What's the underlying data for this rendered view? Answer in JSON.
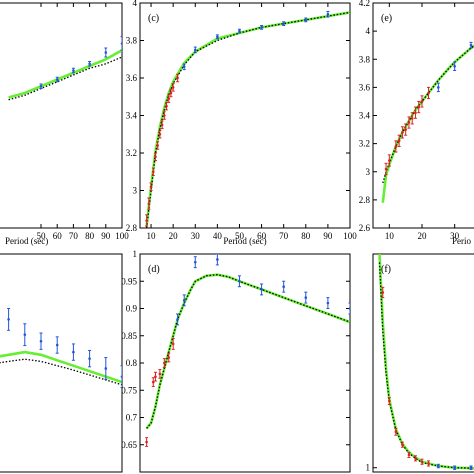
{
  "chart_data": [
    {
      "panel": "",
      "type": "line",
      "xlabel": "Period (sec)",
      "ylabel": "",
      "xlim": [
        0,
        100
      ],
      "ylim": [
        3.0,
        4.0
      ],
      "xticks": [
        0,
        10,
        20,
        30,
        40,
        50,
        60,
        70,
        80,
        90,
        100
      ],
      "xtick_labels": [
        "",
        "50",
        "60",
        "70",
        "80",
        "90",
        "100"
      ],
      "xtick_values_shown": [
        50,
        60,
        70,
        80,
        90,
        100
      ],
      "yticks": [],
      "ytick_labels": [],
      "series": [
        {
          "style": "solid",
          "color": "#66ee33",
          "x": [
            30,
            40,
            50,
            60,
            70,
            80,
            90,
            100
          ],
          "y": [
            3.58,
            3.6,
            3.63,
            3.66,
            3.69,
            3.72,
            3.75,
            3.79
          ]
        },
        {
          "style": "dotted",
          "color": "#000000",
          "x": [
            30,
            40,
            50,
            60,
            70,
            80,
            90,
            100
          ],
          "y": [
            3.57,
            3.59,
            3.62,
            3.65,
            3.68,
            3.71,
            3.73,
            3.76
          ]
        },
        {
          "style": "errorbar",
          "color": "#2255dd",
          "x": [
            50,
            60,
            70,
            80,
            90,
            100
          ],
          "y": [
            3.63,
            3.66,
            3.7,
            3.73,
            3.78,
            3.82
          ],
          "err": [
            0.01,
            0.01,
            0.01,
            0.01,
            0.02,
            0.03
          ]
        }
      ]
    },
    {
      "panel": "(c)",
      "type": "line",
      "xlabel": "Period (sec)",
      "ylabel": "",
      "xlim": [
        5,
        100
      ],
      "ylim": [
        2.8,
        4.0
      ],
      "xtick_labels": [
        "10",
        "20",
        "30",
        "40",
        "50",
        "60",
        "70",
        "80",
        "90",
        "100"
      ],
      "xtick_values": [
        10,
        20,
        30,
        40,
        50,
        60,
        70,
        80,
        90,
        100
      ],
      "ytick_labels": [
        "2.8",
        "3",
        "3.2",
        "3.4",
        "3.6",
        "3.8",
        "4"
      ],
      "ytick_values": [
        2.8,
        3.0,
        3.2,
        3.4,
        3.6,
        3.8,
        4.0
      ],
      "series": [
        {
          "style": "solid",
          "color": "#66ee33",
          "x": [
            8,
            10,
            12,
            14,
            16,
            18,
            20,
            25,
            30,
            40,
            50,
            60,
            70,
            80,
            90,
            100
          ],
          "y": [
            2.81,
            3.02,
            3.21,
            3.34,
            3.44,
            3.52,
            3.58,
            3.68,
            3.74,
            3.81,
            3.84,
            3.87,
            3.89,
            3.91,
            3.93,
            3.95
          ]
        },
        {
          "style": "dotted",
          "color": "#000000",
          "x": [
            8,
            10,
            12,
            14,
            16,
            18,
            20,
            25,
            30,
            40,
            50,
            60,
            70,
            80,
            90,
            100
          ],
          "y": [
            2.8,
            3.0,
            3.2,
            3.33,
            3.43,
            3.51,
            3.57,
            3.67,
            3.74,
            3.8,
            3.84,
            3.87,
            3.89,
            3.91,
            3.93,
            3.95
          ]
        },
        {
          "style": "errorbar",
          "color": "#dd2222",
          "x": [
            8,
            9,
            10,
            11,
            12,
            13,
            14,
            15,
            16,
            17,
            18,
            19,
            20,
            22
          ],
          "y": [
            2.84,
            2.93,
            3.02,
            3.1,
            3.18,
            3.24,
            3.3,
            3.35,
            3.4,
            3.45,
            3.49,
            3.52,
            3.55,
            3.6
          ],
          "err": [
            0.03,
            0.03,
            0.02,
            0.02,
            0.02,
            0.02,
            0.02,
            0.02,
            0.02,
            0.02,
            0.02,
            0.02,
            0.02,
            0.02
          ]
        },
        {
          "style": "errorbar",
          "color": "#2255dd",
          "x": [
            25,
            30,
            40,
            50,
            60,
            70,
            80,
            90
          ],
          "y": [
            3.66,
            3.75,
            3.82,
            3.85,
            3.87,
            3.89,
            3.91,
            3.94
          ],
          "err": [
            0.015,
            0.015,
            0.01,
            0.01,
            0.01,
            0.01,
            0.01,
            0.015
          ]
        }
      ]
    },
    {
      "panel": "(e)",
      "type": "line",
      "xlabel": "Perio",
      "ylabel": "",
      "xlim": [
        5,
        50
      ],
      "ylim": [
        2.6,
        4.2
      ],
      "xtick_labels": [
        "10",
        "20",
        "30",
        "40"
      ],
      "xtick_values": [
        10,
        20,
        30,
        40
      ],
      "ytick_labels": [
        "2.6",
        "2.8",
        "3",
        "3.2",
        "3.4",
        "3.6",
        "3.8",
        "4",
        "4.2"
      ],
      "ytick_values": [
        2.6,
        2.8,
        3.0,
        3.2,
        3.4,
        3.6,
        3.8,
        4.0,
        4.2
      ],
      "series": [
        {
          "style": "solid",
          "color": "#66ee33",
          "x": [
            8,
            9,
            10,
            12,
            14,
            16,
            18,
            20,
            22,
            25,
            28,
            30,
            35,
            40,
            45,
            50
          ],
          "y": [
            2.78,
            2.98,
            3.05,
            3.18,
            3.28,
            3.36,
            3.44,
            3.5,
            3.56,
            3.65,
            3.73,
            3.78,
            3.88,
            3.96,
            4.0,
            4.03
          ]
        },
        {
          "style": "dotted",
          "color": "#000000",
          "x": [
            8,
            9,
            10,
            12,
            14,
            16,
            18,
            20,
            22,
            25,
            28,
            30,
            35,
            40,
            45,
            50
          ],
          "y": [
            2.92,
            3.0,
            3.06,
            3.18,
            3.28,
            3.36,
            3.44,
            3.5,
            3.56,
            3.65,
            3.73,
            3.78,
            3.88,
            3.96,
            4.0,
            4.03
          ]
        },
        {
          "style": "errorbar",
          "color": "#dd2222",
          "x": [
            9,
            10,
            12,
            13,
            14,
            15,
            16,
            17,
            18,
            19,
            20,
            22
          ],
          "y": [
            3.02,
            3.08,
            3.18,
            3.22,
            3.28,
            3.3,
            3.35,
            3.38,
            3.42,
            3.46,
            3.5,
            3.56
          ],
          "err": [
            0.04,
            0.04,
            0.04,
            0.04,
            0.04,
            0.04,
            0.04,
            0.04,
            0.04,
            0.04,
            0.04,
            0.04
          ]
        },
        {
          "style": "errorbar",
          "color": "#2255dd",
          "x": [
            25,
            30,
            35,
            40,
            45,
            50
          ],
          "y": [
            3.6,
            3.75,
            3.9,
            3.96,
            4.0,
            4.03
          ],
          "err": [
            0.03,
            0.03,
            0.02,
            0.02,
            0.02,
            0.02
          ]
        }
      ]
    },
    {
      "panel": "",
      "type": "line",
      "xlabel": "",
      "ylabel": "",
      "xlim": [
        0,
        100
      ],
      "ylim": [
        0.5,
        0.9
      ],
      "xtick_labels": [],
      "ytick_labels": [],
      "series": [
        {
          "style": "solid",
          "color": "#66ee33",
          "x": [
            0,
            30,
            40,
            50,
            60,
            70,
            80,
            90,
            100
          ],
          "y": [
            0.7,
            0.715,
            0.72,
            0.715,
            0.705,
            0.695,
            0.685,
            0.675,
            0.665
          ]
        },
        {
          "style": "dotted",
          "color": "#000000",
          "x": [
            0,
            30,
            40,
            50,
            60,
            70,
            80,
            90,
            100
          ],
          "y": [
            0.69,
            0.703,
            0.707,
            0.703,
            0.695,
            0.687,
            0.678,
            0.669,
            0.66
          ]
        },
        {
          "style": "errorbar",
          "color": "#2255dd",
          "x": [
            30,
            40,
            50,
            60,
            70,
            80,
            90,
            100
          ],
          "y": [
            0.78,
            0.752,
            0.74,
            0.733,
            0.72,
            0.708,
            0.69,
            0.675
          ],
          "err": [
            0.02,
            0.02,
            0.015,
            0.015,
            0.015,
            0.015,
            0.02,
            0.02
          ]
        }
      ]
    },
    {
      "panel": "(d)",
      "type": "line",
      "xlabel": "",
      "ylabel": "",
      "xlim": [
        5,
        100
      ],
      "ylim": [
        0.6,
        1.0
      ],
      "xtick_labels": [],
      "ytick_labels": [
        "0.65",
        "0.7",
        "0.75",
        "0.8",
        "0.85",
        "0.9",
        "0.95",
        "1"
      ],
      "ytick_values": [
        0.65,
        0.7,
        0.75,
        0.8,
        0.85,
        0.9,
        0.95,
        1.0
      ],
      "series": [
        {
          "style": "solid",
          "color": "#66ee33",
          "x": [
            8,
            10,
            12,
            14,
            16,
            18,
            20,
            22,
            25,
            28,
            30,
            35,
            40,
            45,
            50,
            60,
            70,
            80,
            90,
            100
          ],
          "y": [
            0.68,
            0.69,
            0.72,
            0.76,
            0.79,
            0.82,
            0.85,
            0.88,
            0.91,
            0.935,
            0.95,
            0.96,
            0.962,
            0.958,
            0.95,
            0.935,
            0.92,
            0.905,
            0.89,
            0.875
          ]
        },
        {
          "style": "dotted",
          "color": "#000000",
          "x": [
            8,
            10,
            12,
            14,
            16,
            18,
            20,
            22,
            25,
            28,
            30,
            35,
            40,
            45,
            50,
            60,
            70,
            80,
            90,
            100
          ],
          "y": [
            0.68,
            0.69,
            0.72,
            0.76,
            0.79,
            0.82,
            0.85,
            0.88,
            0.91,
            0.935,
            0.95,
            0.96,
            0.962,
            0.958,
            0.95,
            0.935,
            0.92,
            0.905,
            0.89,
            0.875
          ]
        },
        {
          "style": "errorbar",
          "color": "#dd2222",
          "x": [
            8,
            11,
            12,
            14,
            16,
            18,
            20
          ],
          "y": [
            0.655,
            0.765,
            0.775,
            0.78,
            0.8,
            0.81,
            0.835
          ],
          "err": [
            0.008,
            0.008,
            0.008,
            0.008,
            0.008,
            0.008,
            0.01
          ]
        },
        {
          "style": "errorbar",
          "color": "#2255dd",
          "x": [
            22,
            25,
            30,
            40,
            50,
            60,
            70,
            80,
            90,
            100
          ],
          "y": [
            0.88,
            0.915,
            0.985,
            0.99,
            0.95,
            0.935,
            0.94,
            0.92,
            0.91,
            0.9
          ],
          "err": [
            0.01,
            0.01,
            0.01,
            0.01,
            0.01,
            0.01,
            0.01,
            0.01,
            0.01,
            0.01
          ]
        }
      ]
    },
    {
      "panel": "(f)",
      "type": "line",
      "xlabel": "",
      "ylabel": "",
      "xlim": [
        5,
        50
      ],
      "ylim": [
        0.95,
        3.5
      ],
      "xtick_labels": [],
      "ytick_labels": [
        "1"
      ],
      "ytick_values": [
        1.0
      ],
      "series": [
        {
          "style": "solid",
          "color": "#66ee33",
          "x": [
            7,
            8,
            9,
            10,
            12,
            14,
            16,
            18,
            20,
            25,
            30,
            40,
            50
          ],
          "y": [
            3.5,
            2.7,
            2.15,
            1.8,
            1.45,
            1.28,
            1.18,
            1.12,
            1.07,
            1.02,
            1.0,
            0.99,
            0.99
          ]
        },
        {
          "style": "dotted",
          "color": "#000000",
          "x": [
            7,
            8,
            9,
            10,
            12,
            14,
            16,
            18,
            20,
            25,
            30,
            40,
            50
          ],
          "y": [
            3.4,
            2.6,
            2.1,
            1.78,
            1.44,
            1.27,
            1.17,
            1.11,
            1.06,
            1.02,
            1.0,
            0.99,
            0.99
          ]
        },
        {
          "style": "errorbar",
          "color": "#dd2222",
          "x": [
            8,
            10,
            12,
            14,
            16,
            18,
            20,
            22
          ],
          "y": [
            3.05,
            1.78,
            1.42,
            1.27,
            1.15,
            1.11,
            1.07,
            1.05
          ],
          "err": [
            0.06,
            0.04,
            0.04,
            0.03,
            0.03,
            0.03,
            0.03,
            0.03
          ]
        },
        {
          "style": "errorbar",
          "color": "#2255dd",
          "x": [
            25,
            30,
            35,
            40,
            45,
            50
          ],
          "y": [
            1.02,
            1.0,
            1.0,
            0.99,
            0.99,
            0.99
          ],
          "err": [
            0.02,
            0.02,
            0.02,
            0.02,
            0.02,
            0.02
          ]
        }
      ]
    }
  ]
}
